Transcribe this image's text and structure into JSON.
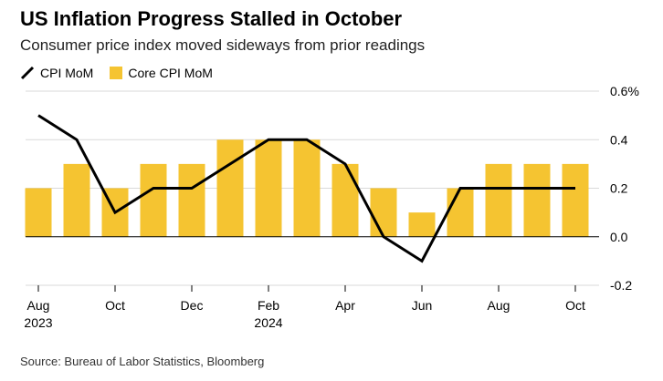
{
  "title": "US Inflation Progress Stalled in October",
  "subtitle": "Consumer price index moved sideways from prior readings",
  "source": "Source: Bureau of Labor Statistics, Bloomberg",
  "colors": {
    "line": "#000000",
    "bar": "#F5C431",
    "grid": "#d9d9d9",
    "zero": "#000000"
  },
  "chart_data": {
    "type": "bar",
    "title": "US Inflation Progress Stalled in October",
    "categories": [
      "2023-08",
      "2023-09",
      "2023-10",
      "2023-11",
      "2023-12",
      "2024-01",
      "2024-02",
      "2024-03",
      "2024-04",
      "2024-05",
      "2024-06",
      "2024-07",
      "2024-08",
      "2024-09",
      "2024-10"
    ],
    "series": [
      {
        "name": "CPI MoM",
        "type": "line",
        "values": [
          0.5,
          0.4,
          0.1,
          0.2,
          0.2,
          0.3,
          0.4,
          0.4,
          0.3,
          0.0,
          -0.1,
          0.2,
          0.2,
          0.2,
          0.2
        ]
      },
      {
        "name": "Core CPI MoM",
        "type": "bar",
        "values": [
          0.2,
          0.3,
          0.2,
          0.3,
          0.3,
          0.4,
          0.4,
          0.4,
          0.3,
          0.2,
          0.1,
          0.2,
          0.3,
          0.3,
          0.3
        ]
      }
    ],
    "ylim": [
      -0.2,
      0.6
    ],
    "yticks": [
      {
        "value": 0.6,
        "label": "0.6%"
      },
      {
        "value": 0.4,
        "label": "0.4"
      },
      {
        "value": 0.2,
        "label": "0.2"
      },
      {
        "value": 0.0,
        "label": "0.0"
      },
      {
        "value": -0.2,
        "label": "-0.2"
      }
    ],
    "xticks": [
      {
        "index": 0,
        "label": "Aug",
        "sublabel": "2023"
      },
      {
        "index": 2,
        "label": "Oct",
        "sublabel": ""
      },
      {
        "index": 4,
        "label": "Dec",
        "sublabel": ""
      },
      {
        "index": 6,
        "label": "Feb",
        "sublabel": "2024"
      },
      {
        "index": 8,
        "label": "Apr",
        "sublabel": ""
      },
      {
        "index": 10,
        "label": "Jun",
        "sublabel": ""
      },
      {
        "index": 12,
        "label": "Aug",
        "sublabel": ""
      },
      {
        "index": 14,
        "label": "Oct",
        "sublabel": ""
      }
    ],
    "grid": true,
    "legend": "top-left"
  }
}
